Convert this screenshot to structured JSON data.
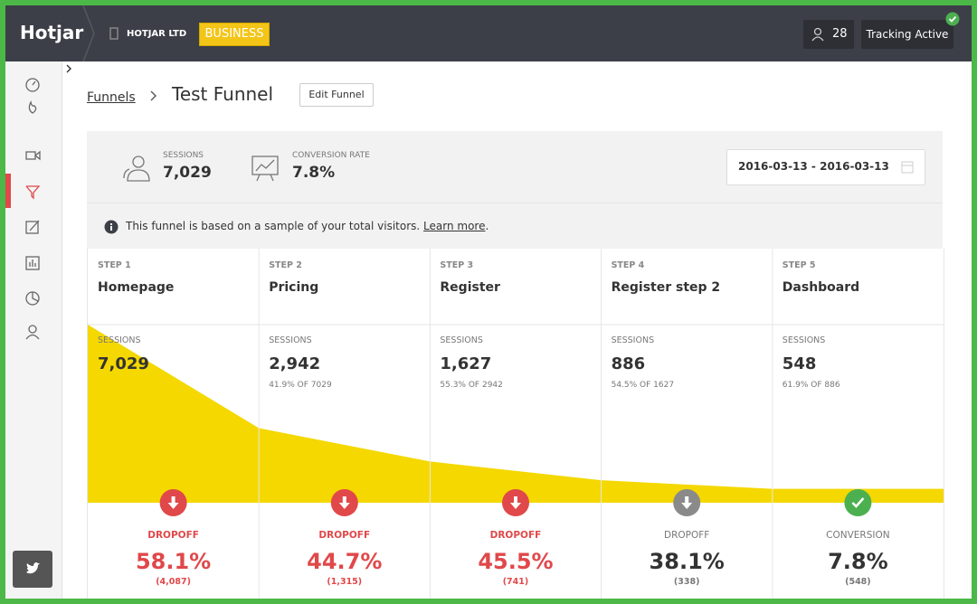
{
  "header": {
    "logo": "Hotjar",
    "organization": "HOTJAR LTD",
    "plan": "BUSINESS",
    "users": "28",
    "tracking": "Tracking Active"
  },
  "breadcrumb": {
    "parent": "Funnels",
    "title": "Test Funnel",
    "edit_button": "Edit Funnel"
  },
  "stats": {
    "sessions_label": "SESSIONS",
    "sessions": "7,029",
    "conversion_label": "CONVERSION RATE",
    "conversion": "7.8%",
    "date_range": "2016-03-13 - 2016-03-13"
  },
  "notice": {
    "text": "This funnel is based on a sample of your total visitors.",
    "link": "Learn more",
    "end": "."
  },
  "steps": [
    {
      "step": "STEP 1",
      "name": "Homepage",
      "sessions_label": "SESSIONS",
      "sessions": {
        "value": 7029,
        "label": "7,029"
      },
      "outcome": {
        "label": "DROPOFF",
        "rate": "58.1%",
        "count": "(4,087)",
        "color": "#e0484a"
      }
    },
    {
      "step": "STEP 2",
      "name": "Pricing",
      "sessions_label": "SESSIONS",
      "sessions": {
        "value": 2942,
        "label": "2,942"
      },
      "share": "41.9% OF 7029",
      "outcome": {
        "label": "DROPOFF",
        "rate": "44.7%",
        "count": "(1,315)",
        "color": "#e0484a"
      }
    },
    {
      "step": "STEP 3",
      "name": "Register",
      "sessions_label": "SESSIONS",
      "sessions": {
        "value": 1627,
        "label": "1,627"
      },
      "share": "55.3% OF 2942",
      "outcome": {
        "label": "DROPOFF",
        "rate": "45.5%",
        "count": "(741)",
        "color": "#e0484a"
      }
    },
    {
      "step": "STEP 4",
      "name": "Register step 2",
      "sessions_label": "SESSIONS",
      "sessions": {
        "value": 886,
        "label": "886"
      },
      "share": "54.5% OF 1627",
      "outcome": {
        "label": "DROPOFF",
        "rate": "38.1%",
        "count": "(338)",
        "color": "#8a8a8a"
      }
    },
    {
      "step": "STEP 5",
      "name": "Dashboard",
      "sessions_label": "SESSIONS",
      "sessions": {
        "value": 548,
        "label": "548"
      },
      "share": "61.9% OF 886",
      "outcome": {
        "label": "CONVERSION",
        "rate": "7.8%",
        "count": "(548)",
        "color": "#4cb050"
      }
    }
  ],
  "funnel_color": "#f4d800"
}
